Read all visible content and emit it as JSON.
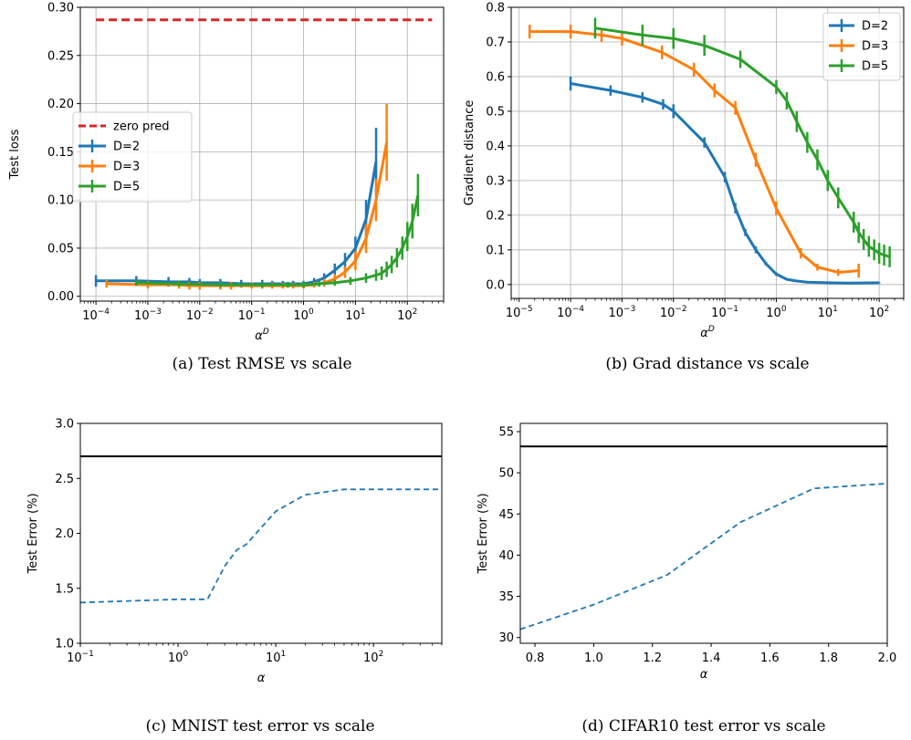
{
  "chart_data": [
    {
      "type": "line",
      "panel": "a",
      "caption": "(a)  Test RMSE vs scale",
      "xlabel": "α^D",
      "ylabel": "Test loss",
      "xscale": "log",
      "xlim": [
        5e-05,
        500
      ],
      "ylim": [
        -0.005,
        0.3
      ],
      "xticks": [
        0.0001,
        0.001,
        0.01,
        0.1,
        1,
        10,
        100
      ],
      "xtick_labels": [
        [
          "10",
          "−4"
        ],
        [
          "10",
          "−3"
        ],
        [
          "10",
          "−2"
        ],
        [
          "10",
          "−1"
        ],
        [
          "10",
          "0"
        ],
        [
          "10",
          "1"
        ],
        [
          "10",
          "2"
        ]
      ],
      "yticks": [
        0,
        0.05,
        0.1,
        0.15,
        0.2,
        0.25,
        0.3
      ],
      "ytick_labels": [
        "0.00",
        "0.05",
        "0.10",
        "0.15",
        "0.20",
        "0.25",
        "0.30"
      ],
      "grid": true,
      "legend_position": "center-left",
      "hline": {
        "name": "zero pred",
        "y": 0.287,
        "color": "#d62728",
        "dashed": true,
        "x": [
          0.0001,
          300
        ]
      },
      "series": [
        {
          "name": "D=2",
          "color": "#1f77b4",
          "x": [
            0.0001,
            0.0006,
            0.0025,
            0.0063,
            0.01,
            0.025,
            0.063,
            0.16,
            0.25,
            0.4,
            0.63,
            1,
            1.6,
            2.5,
            4,
            6.3,
            10,
            16,
            25
          ],
          "y": [
            0.016,
            0.016,
            0.015,
            0.015,
            0.014,
            0.014,
            0.013,
            0.013,
            0.013,
            0.013,
            0.013,
            0.013,
            0.015,
            0.019,
            0.027,
            0.036,
            0.05,
            0.08,
            0.14
          ],
          "err": [
            0.006,
            0.005,
            0.005,
            0.004,
            0.004,
            0.004,
            0.004,
            0.004,
            0.003,
            0.003,
            0.003,
            0.003,
            0.004,
            0.005,
            0.007,
            0.009,
            0.012,
            0.02,
            0.035
          ]
        },
        {
          "name": "D=3",
          "color": "#ff7f0e",
          "x": [
            0.00016,
            0.001,
            0.004,
            0.0063,
            0.01,
            0.025,
            0.04,
            0.1,
            0.16,
            0.25,
            0.4,
            0.63,
            1,
            1.6,
            2.5,
            4,
            6.3,
            10,
            16,
            25,
            40
          ],
          "y": [
            0.013,
            0.012,
            0.012,
            0.011,
            0.011,
            0.011,
            0.011,
            0.011,
            0.011,
            0.011,
            0.011,
            0.011,
            0.011,
            0.012,
            0.014,
            0.018,
            0.025,
            0.037,
            0.06,
            0.1,
            0.16
          ],
          "err": [
            0.004,
            0.004,
            0.004,
            0.004,
            0.004,
            0.004,
            0.004,
            0.003,
            0.003,
            0.003,
            0.003,
            0.003,
            0.003,
            0.003,
            0.004,
            0.005,
            0.006,
            0.01,
            0.015,
            0.022,
            0.04
          ]
        },
        {
          "name": "D=5",
          "color": "#2ca02c",
          "x": [
            0.0006,
            0.004,
            0.025,
            0.16,
            0.5,
            1,
            2,
            4,
            8,
            16,
            25,
            32,
            40,
            50,
            63,
            80,
            100,
            125,
            160
          ],
          "y": [
            0.014,
            0.013,
            0.012,
            0.012,
            0.012,
            0.012,
            0.013,
            0.014,
            0.016,
            0.019,
            0.022,
            0.024,
            0.028,
            0.033,
            0.04,
            0.05,
            0.062,
            0.078,
            0.105
          ],
          "err": [
            0.003,
            0.003,
            0.003,
            0.003,
            0.003,
            0.003,
            0.003,
            0.003,
            0.004,
            0.005,
            0.006,
            0.007,
            0.008,
            0.009,
            0.01,
            0.012,
            0.015,
            0.018,
            0.022
          ]
        }
      ]
    },
    {
      "type": "line",
      "panel": "b",
      "caption": "(b)  Grad distance vs scale",
      "xlabel": "α^D",
      "ylabel": "Gradient distance",
      "xscale": "log",
      "xlim": [
        7e-06,
        300
      ],
      "ylim": [
        -0.04,
        0.8
      ],
      "xticks": [
        1e-05,
        0.0001,
        0.001,
        0.01,
        0.1,
        1,
        10,
        100
      ],
      "xtick_labels": [
        [
          "10",
          "−5"
        ],
        [
          "10",
          "−4"
        ],
        [
          "10",
          "−3"
        ],
        [
          "10",
          "−2"
        ],
        [
          "10",
          "−1"
        ],
        [
          "10",
          "0"
        ],
        [
          "10",
          "1"
        ],
        [
          "10",
          "2"
        ]
      ],
      "yticks": [
        0,
        0.1,
        0.2,
        0.3,
        0.4,
        0.5,
        0.6,
        0.7,
        0.8
      ],
      "ytick_labels": [
        "0.0",
        "0.1",
        "0.2",
        "0.3",
        "0.4",
        "0.5",
        "0.6",
        "0.7",
        "0.8"
      ],
      "grid": true,
      "legend_position": "upper-right",
      "series": [
        {
          "name": "D=2",
          "color": "#1f77b4",
          "x": [
            0.0001,
            0.0006,
            0.0025,
            0.0063,
            0.01,
            0.04,
            0.1,
            0.16,
            0.25,
            0.4,
            0.63,
            1,
            1.6,
            2.5,
            4,
            10,
            25,
            100
          ],
          "y": [
            0.58,
            0.56,
            0.54,
            0.52,
            0.5,
            0.41,
            0.31,
            0.22,
            0.15,
            0.1,
            0.06,
            0.03,
            0.015,
            0.01,
            0.007,
            0.005,
            0.004,
            0.005
          ],
          "err": [
            0.02,
            0.015,
            0.015,
            0.015,
            0.02,
            0.015,
            0.015,
            0.015,
            0.01,
            0.01,
            0.005,
            0.005,
            0.003,
            0.003,
            0.003,
            0.002,
            0.002,
            0.002
          ]
        },
        {
          "name": "D=3",
          "color": "#ff7f0e",
          "x": [
            1.6e-05,
            0.0001,
            0.0004,
            0.001,
            0.006,
            0.025,
            0.063,
            0.16,
            0.4,
            1,
            3,
            6.3,
            16,
            40
          ],
          "y": [
            0.73,
            0.73,
            0.72,
            0.71,
            0.67,
            0.62,
            0.56,
            0.51,
            0.36,
            0.22,
            0.09,
            0.05,
            0.035,
            0.04
          ],
          "err": [
            0.02,
            0.02,
            0.02,
            0.02,
            0.02,
            0.02,
            0.02,
            0.02,
            0.02,
            0.02,
            0.015,
            0.01,
            0.01,
            0.02
          ]
        },
        {
          "name": "D=5",
          "color": "#2ca02c",
          "x": [
            0.0003,
            0.0025,
            0.01,
            0.04,
            0.2,
            1,
            1.6,
            2.5,
            4,
            6.3,
            10,
            16,
            32,
            40,
            50,
            63,
            80,
            100,
            125,
            160
          ],
          "y": [
            0.74,
            0.72,
            0.71,
            0.69,
            0.65,
            0.57,
            0.53,
            0.47,
            0.41,
            0.36,
            0.3,
            0.25,
            0.18,
            0.15,
            0.13,
            0.11,
            0.1,
            0.09,
            0.085,
            0.08
          ],
          "err": [
            0.03,
            0.03,
            0.03,
            0.03,
            0.025,
            0.02,
            0.025,
            0.03,
            0.03,
            0.03,
            0.03,
            0.03,
            0.03,
            0.03,
            0.03,
            0.03,
            0.03,
            0.03,
            0.03,
            0.03
          ]
        }
      ]
    },
    {
      "type": "line",
      "panel": "c",
      "caption": "(c)  MNIST test error vs scale",
      "xlabel": "α",
      "ylabel": "Test Error (%)",
      "xscale": "log",
      "xlim": [
        0.1,
        500
      ],
      "ylim": [
        1.0,
        3.0
      ],
      "xticks": [
        0.1,
        1,
        10,
        100
      ],
      "xtick_labels": [
        [
          "10",
          "−1"
        ],
        [
          "10",
          "0"
        ],
        [
          "10",
          "1"
        ],
        [
          "10",
          "2"
        ]
      ],
      "yticks": [
        1.0,
        1.5,
        2.0,
        2.5,
        3.0
      ],
      "ytick_labels": [
        "1.0",
        "1.5",
        "2.0",
        "2.5",
        "3.0"
      ],
      "grid": false,
      "hline": {
        "y": 2.7,
        "color": "#000000",
        "dashed": false
      },
      "series": [
        {
          "color": "#1f77b4",
          "dashed": true,
          "x": [
            0.1,
            1,
            2,
            3,
            4,
            5,
            10,
            20,
            50,
            500
          ],
          "y": [
            1.37,
            1.4,
            1.4,
            1.7,
            1.85,
            1.9,
            2.2,
            2.35,
            2.4,
            2.4
          ]
        }
      ]
    },
    {
      "type": "line",
      "panel": "d",
      "caption": "(d)  CIFAR10 test error vs scale",
      "xlabel": "α",
      "ylabel": "Test Error (%)",
      "xscale": "linear",
      "xlim": [
        0.75,
        2.0
      ],
      "ylim": [
        29.3,
        56
      ],
      "xticks": [
        0.8,
        1.0,
        1.2,
        1.4,
        1.6,
        1.8,
        2.0
      ],
      "xtick_labels": [
        [
          "0.8"
        ],
        [
          "1.0"
        ],
        [
          "1.2"
        ],
        [
          "1.4"
        ],
        [
          "1.6"
        ],
        [
          "1.8"
        ],
        [
          "2.0"
        ]
      ],
      "yticks": [
        30,
        35,
        40,
        45,
        50,
        55
      ],
      "ytick_labels": [
        "30",
        "35",
        "40",
        "45",
        "50",
        "55"
      ],
      "grid": false,
      "hline": {
        "y": 53.2,
        "color": "#000000",
        "dashed": false
      },
      "series": [
        {
          "color": "#1f77b4",
          "dashed": true,
          "x": [
            0.75,
            1.0,
            1.25,
            1.5,
            1.75,
            2.0
          ],
          "y": [
            31.0,
            34.0,
            37.6,
            44.0,
            48.1,
            48.7
          ]
        }
      ]
    }
  ]
}
